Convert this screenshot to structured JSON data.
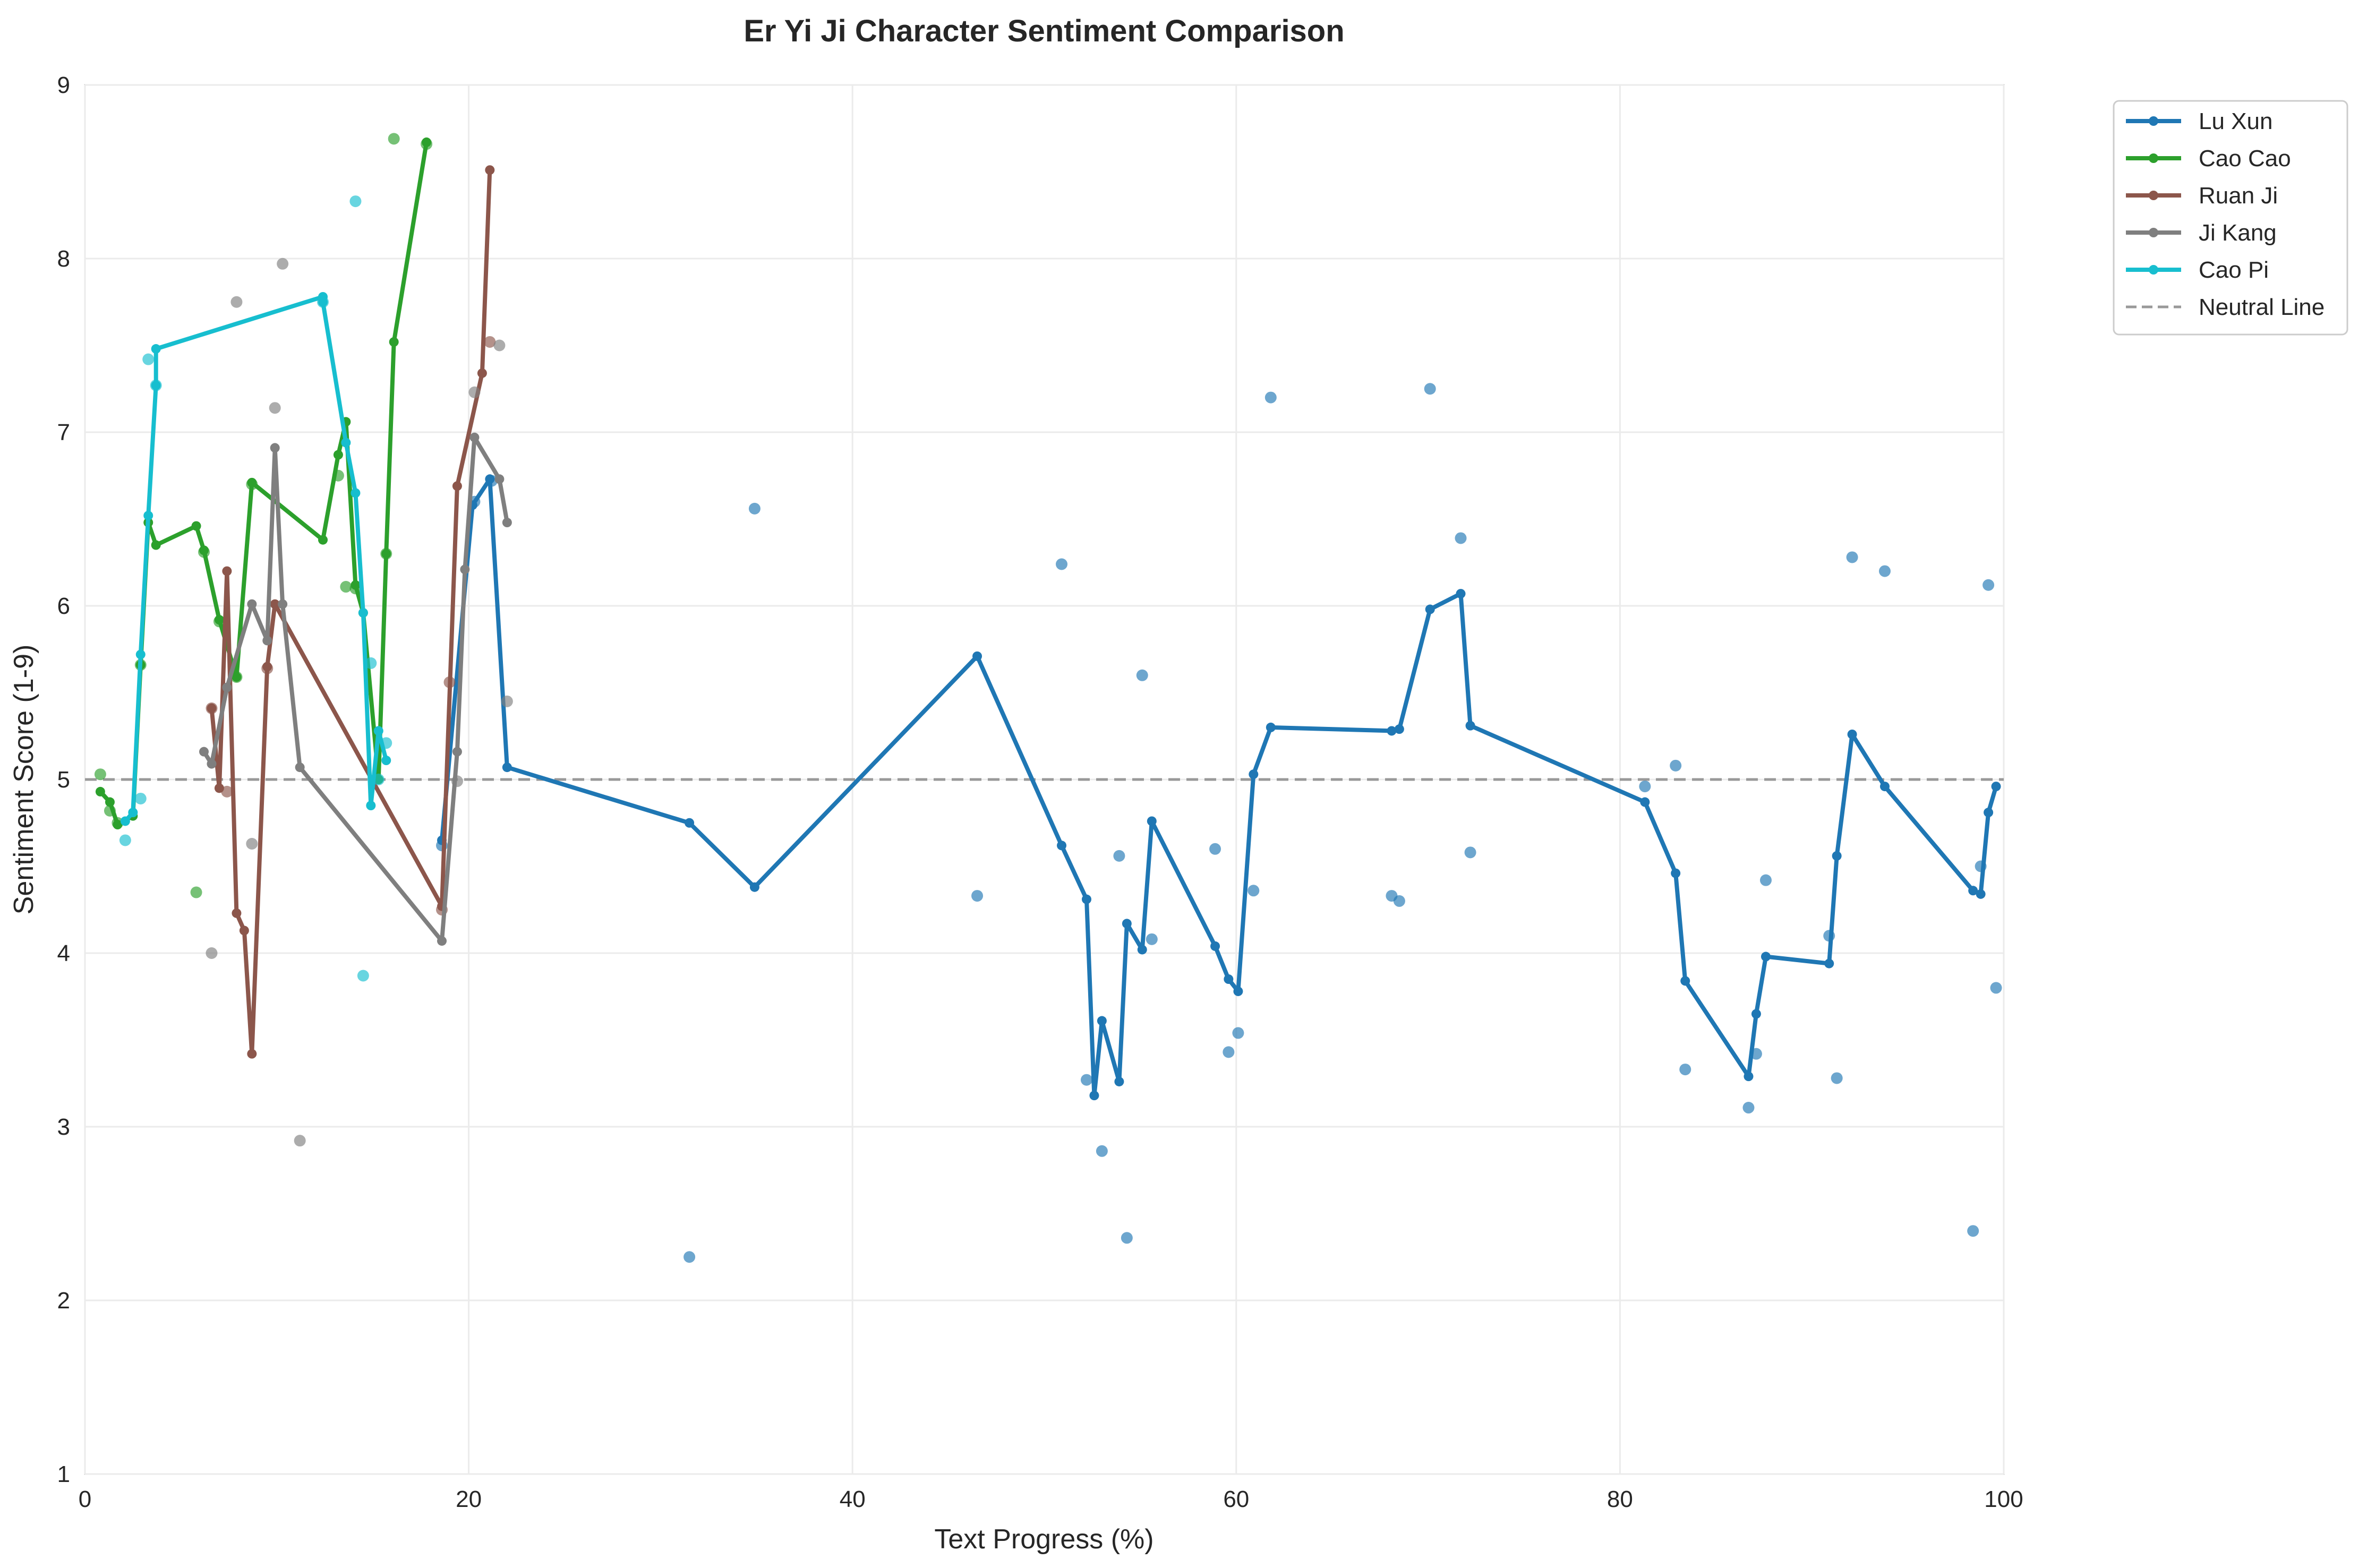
{
  "chart_data": {
    "type": "line",
    "title": "Er Yi Ji Character Sentiment Comparison",
    "xlabel": "Text Progress (%)",
    "ylabel": "Sentiment Score (1-9)",
    "xlim": [
      0,
      100
    ],
    "ylim": [
      1,
      9
    ],
    "xticks": [
      0,
      20,
      40,
      60,
      80,
      100
    ],
    "yticks": [
      1,
      2,
      3,
      4,
      5,
      6,
      7,
      8,
      9
    ],
    "grid": true,
    "legend_position": "outside-top-right",
    "reference_line": {
      "name": "Neutral Line",
      "y": 5,
      "color": "#999999",
      "style": "dashed"
    },
    "series": [
      {
        "name": "Lu Xun",
        "color": "#1f77b4",
        "line": [
          [
            18.6,
            4.65
          ],
          [
            20.2,
            6.58
          ],
          [
            21.1,
            6.73
          ],
          [
            22.0,
            5.07
          ],
          [
            31.5,
            4.75
          ],
          [
            34.9,
            4.38
          ],
          [
            46.5,
            5.71
          ],
          [
            50.9,
            4.62
          ],
          [
            52.2,
            4.31
          ],
          [
            52.6,
            3.18
          ],
          [
            53.0,
            3.61
          ],
          [
            53.9,
            3.26
          ],
          [
            54.3,
            4.17
          ],
          [
            55.1,
            4.02
          ],
          [
            55.6,
            4.76
          ],
          [
            58.9,
            4.04
          ],
          [
            59.6,
            3.85
          ],
          [
            60.1,
            3.78
          ],
          [
            60.9,
            5.03
          ],
          [
            61.8,
            5.3
          ],
          [
            68.1,
            5.28
          ],
          [
            68.5,
            5.29
          ],
          [
            70.1,
            5.98
          ],
          [
            71.7,
            6.07
          ],
          [
            72.2,
            5.31
          ],
          [
            81.3,
            4.87
          ],
          [
            82.9,
            4.46
          ],
          [
            83.4,
            3.84
          ],
          [
            86.7,
            3.29
          ],
          [
            87.1,
            3.65
          ],
          [
            87.6,
            3.98
          ],
          [
            90.9,
            3.94
          ],
          [
            91.3,
            4.56
          ],
          [
            92.1,
            5.26
          ],
          [
            93.8,
            4.96
          ],
          [
            98.4,
            4.36
          ],
          [
            98.8,
            4.34
          ],
          [
            99.2,
            4.81
          ],
          [
            99.6,
            4.96
          ]
        ],
        "scatter": [
          [
            18.6,
            4.62
          ],
          [
            20.3,
            6.6
          ],
          [
            21.2,
            6.72
          ],
          [
            31.5,
            2.25
          ],
          [
            34.9,
            6.56
          ],
          [
            46.5,
            4.33
          ],
          [
            50.9,
            6.24
          ],
          [
            52.2,
            3.27
          ],
          [
            53.0,
            2.86
          ],
          [
            53.9,
            4.56
          ],
          [
            54.3,
            2.36
          ],
          [
            55.1,
            5.6
          ],
          [
            55.6,
            4.08
          ],
          [
            58.9,
            4.6
          ],
          [
            59.6,
            3.43
          ],
          [
            60.1,
            3.54
          ],
          [
            60.9,
            4.36
          ],
          [
            61.8,
            7.2
          ],
          [
            68.1,
            4.33
          ],
          [
            68.5,
            4.3
          ],
          [
            70.1,
            7.25
          ],
          [
            71.7,
            6.39
          ],
          [
            72.2,
            4.58
          ],
          [
            81.3,
            4.96
          ],
          [
            82.9,
            5.08
          ],
          [
            83.4,
            3.33
          ],
          [
            86.7,
            3.11
          ],
          [
            87.1,
            3.42
          ],
          [
            87.6,
            4.42
          ],
          [
            90.9,
            4.1
          ],
          [
            91.3,
            3.28
          ],
          [
            92.1,
            6.28
          ],
          [
            93.8,
            6.2
          ],
          [
            98.4,
            2.4
          ],
          [
            98.8,
            4.5
          ],
          [
            99.2,
            6.12
          ],
          [
            99.6,
            3.8
          ]
        ]
      },
      {
        "name": "Cao Cao",
        "color": "#2ca02c",
        "line": [
          [
            0.8,
            4.93
          ],
          [
            1.3,
            4.87
          ],
          [
            1.7,
            4.74
          ],
          [
            2.5,
            4.79
          ],
          [
            2.9,
            5.66
          ],
          [
            3.3,
            6.48
          ],
          [
            3.7,
            6.35
          ],
          [
            5.8,
            6.46
          ],
          [
            6.2,
            6.32
          ],
          [
            7.0,
            5.92
          ],
          [
            7.9,
            5.59
          ],
          [
            8.7,
            6.71
          ],
          [
            12.4,
            6.38
          ],
          [
            13.2,
            6.87
          ],
          [
            13.6,
            7.06
          ],
          [
            14.1,
            6.12
          ],
          [
            14.5,
            5.96
          ],
          [
            15.3,
            5.0
          ],
          [
            15.7,
            6.3
          ],
          [
            16.1,
            7.52
          ],
          [
            17.8,
            8.67
          ]
        ],
        "scatter": [
          [
            0.8,
            5.03
          ],
          [
            1.3,
            4.82
          ],
          [
            1.7,
            4.75
          ],
          [
            2.9,
            5.66
          ],
          [
            5.8,
            4.35
          ],
          [
            6.2,
            6.31
          ],
          [
            7.0,
            5.91
          ],
          [
            7.9,
            5.59
          ],
          [
            8.7,
            6.7
          ],
          [
            13.2,
            6.75
          ],
          [
            13.6,
            6.11
          ],
          [
            14.1,
            6.1
          ],
          [
            15.7,
            6.3
          ],
          [
            16.1,
            8.69
          ],
          [
            17.8,
            8.66
          ]
        ]
      },
      {
        "name": "Ruan Ji",
        "color": "#8c564b",
        "line": [
          [
            6.6,
            5.41
          ],
          [
            7.0,
            4.95
          ],
          [
            7.4,
            6.2
          ],
          [
            7.9,
            4.23
          ],
          [
            8.3,
            4.13
          ],
          [
            8.7,
            3.42
          ],
          [
            9.5,
            5.65
          ],
          [
            9.9,
            6.01
          ],
          [
            18.6,
            4.27
          ],
          [
            19.4,
            6.69
          ],
          [
            20.7,
            7.34
          ],
          [
            21.1,
            8.51
          ]
        ],
        "scatter": [
          [
            6.6,
            5.41
          ],
          [
            7.4,
            4.93
          ],
          [
            9.5,
            5.64
          ],
          [
            18.6,
            4.25
          ],
          [
            19.0,
            5.56
          ],
          [
            21.1,
            7.52
          ]
        ]
      },
      {
        "name": "Ji Kang",
        "color": "#7f7f7f",
        "line": [
          [
            6.2,
            5.16
          ],
          [
            6.6,
            5.09
          ],
          [
            7.4,
            5.53
          ],
          [
            8.7,
            6.01
          ],
          [
            9.5,
            5.8
          ],
          [
            9.9,
            6.91
          ],
          [
            10.3,
            6.01
          ],
          [
            11.2,
            5.07
          ],
          [
            18.6,
            4.07
          ],
          [
            19.4,
            5.16
          ],
          [
            19.8,
            6.21
          ],
          [
            20.3,
            6.97
          ],
          [
            21.6,
            6.73
          ],
          [
            22.0,
            6.48
          ]
        ],
        "scatter": [
          [
            6.6,
            4.0
          ],
          [
            7.9,
            7.75
          ],
          [
            8.7,
            4.63
          ],
          [
            9.9,
            7.14
          ],
          [
            10.3,
            7.97
          ],
          [
            11.2,
            2.92
          ],
          [
            19.4,
            4.99
          ],
          [
            20.3,
            7.23
          ],
          [
            21.6,
            7.5
          ],
          [
            22.0,
            5.45
          ]
        ]
      },
      {
        "name": "Cao Pi",
        "color": "#17becf",
        "line": [
          [
            2.1,
            4.76
          ],
          [
            2.5,
            4.81
          ],
          [
            2.9,
            5.72
          ],
          [
            3.3,
            6.52
          ],
          [
            3.7,
            7.27
          ],
          [
            3.7,
            7.48
          ],
          [
            12.4,
            7.78
          ],
          [
            12.4,
            7.75
          ],
          [
            13.6,
            6.94
          ],
          [
            14.1,
            6.65
          ],
          [
            14.5,
            5.96
          ],
          [
            14.9,
            4.85
          ],
          [
            15.3,
            5.28
          ],
          [
            15.7,
            5.11
          ]
        ],
        "scatter": [
          [
            2.1,
            4.65
          ],
          [
            2.9,
            4.89
          ],
          [
            3.3,
            7.42
          ],
          [
            3.7,
            7.27
          ],
          [
            12.4,
            7.75
          ],
          [
            14.1,
            8.33
          ],
          [
            14.5,
            3.87
          ],
          [
            14.9,
            5.67
          ],
          [
            15.3,
            5.0
          ],
          [
            15.7,
            5.21
          ]
        ]
      }
    ]
  }
}
